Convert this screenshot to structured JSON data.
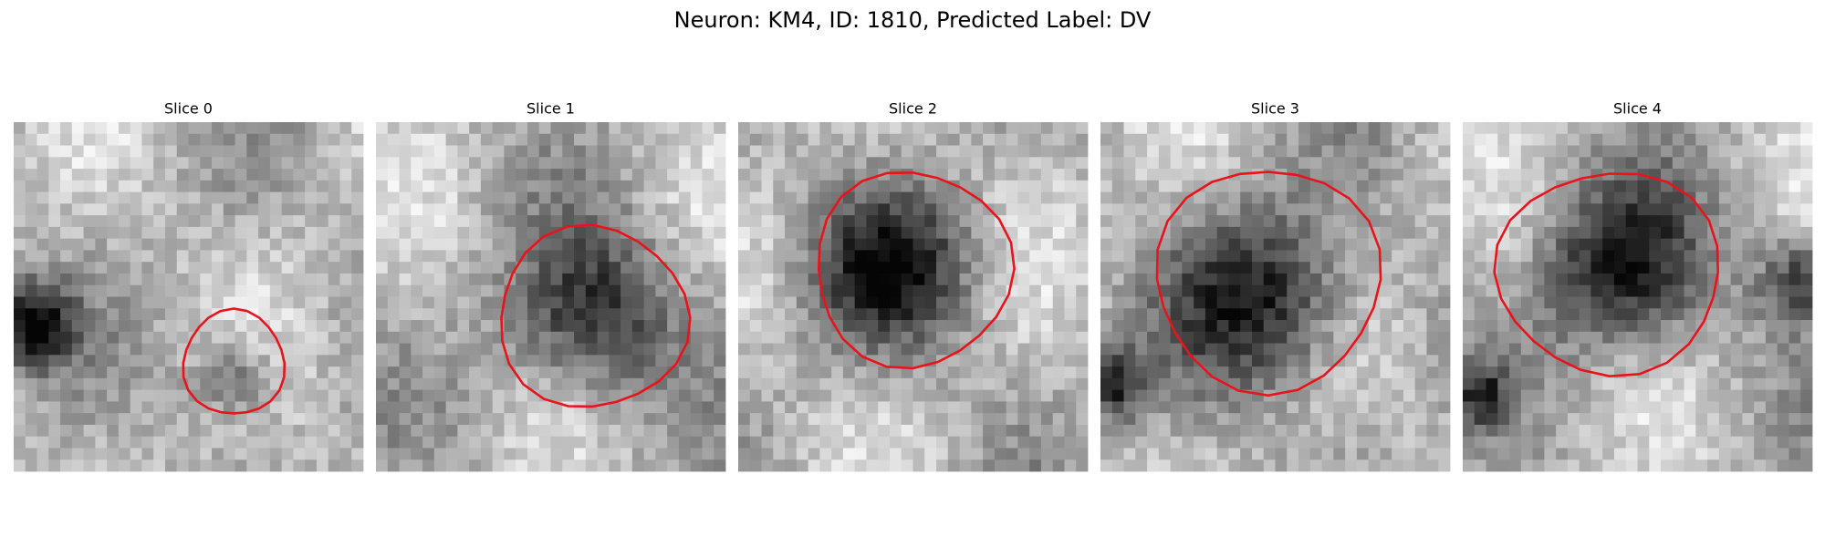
{
  "title": "Neuron: KM4, ID: 1810, Predicted Label: DV",
  "panels": [
    {
      "title": "Slice 0"
    },
    {
      "title": "Slice 1"
    },
    {
      "title": "Slice 2"
    },
    {
      "title": "Slice 3"
    },
    {
      "title": "Slice 4"
    }
  ]
}
